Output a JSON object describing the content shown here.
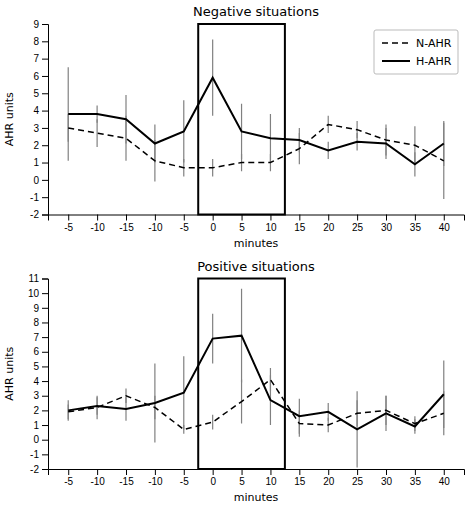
{
  "chart_data": [
    {
      "type": "line",
      "title": "Negative situations",
      "xlabel": "minutes",
      "ylabel": "AHR units",
      "categories": [
        "-5",
        "-10",
        "-15",
        "-10",
        "-5",
        "0",
        "5",
        "10",
        "15",
        "20",
        "25",
        "30",
        "35",
        "40"
      ],
      "series": [
        {
          "name": "N-AHR",
          "color": "#000000",
          "line_style": "dashed",
          "values": [
            3.0,
            2.7,
            2.4,
            1.1,
            0.7,
            0.7,
            1.0,
            1.0,
            1.8,
            3.2,
            2.9,
            2.3,
            2.0,
            1.1
          ],
          "errors": [
            0.8,
            0.8,
            1.3,
            1.2,
            0.5,
            0.5,
            0.5,
            0.5,
            0.9,
            0.5,
            0.5,
            0.9,
            1.1,
            2.2
          ]
        },
        {
          "name": "H-AHR",
          "color": "#000000",
          "line_style": "solid",
          "values": [
            3.8,
            3.8,
            3.5,
            2.1,
            2.8,
            5.9,
            2.8,
            2.4,
            2.3,
            1.7,
            2.2,
            2.1,
            0.9,
            2.1
          ],
          "errors": [
            2.7,
            0.5,
            1.4,
            1.1,
            1.8,
            2.2,
            1.6,
            1.4,
            0.7,
            0.5,
            0.5,
            0.9,
            0.7,
            1.3
          ]
        }
      ],
      "highlight": {
        "from": "0",
        "to": "10"
      },
      "ylim": [
        -2,
        9
      ],
      "yticks": [
        -2,
        -1,
        0,
        1,
        2,
        3,
        4,
        5,
        6,
        7,
        8,
        9
      ],
      "grid": false,
      "legend": "upper right"
    },
    {
      "type": "line",
      "title": "Positive situations",
      "xlabel": "minutes",
      "ylabel": "AHR units",
      "categories": [
        "-5",
        "-10",
        "-15",
        "-10",
        "-5",
        "0",
        "5",
        "10",
        "15",
        "20",
        "25",
        "30",
        "35",
        "40"
      ],
      "series": [
        {
          "color": "#000000",
          "line_style": "dashed",
          "values": [
            1.9,
            2.2,
            3.0,
            2.2,
            0.7,
            1.2,
            2.6,
            4.1,
            1.1,
            1.0,
            1.8,
            2.0,
            1.1,
            1.8
          ],
          "errors": [
            0.5,
            0.8,
            0.5,
            0.8,
            0.3,
            0.5,
            1.5,
            0.8,
            0.9,
            0.5,
            0.9,
            1.0,
            0.5,
            1.5
          ]
        },
        {
          "color": "#000000",
          "line_style": "solid",
          "values": [
            2.0,
            2.3,
            2.1,
            2.5,
            3.2,
            6.9,
            7.1,
            2.7,
            1.6,
            1.9,
            0.7,
            1.8,
            0.9,
            3.1
          ],
          "errors": [
            0.7,
            0.6,
            0.8,
            2.7,
            2.5,
            1.7,
            3.2,
            1.7,
            1.2,
            0.6,
            2.6,
            1.2,
            0.5,
            2.3
          ]
        }
      ],
      "highlight": {
        "from": "0",
        "to": "10"
      },
      "ylim": [
        -2,
        11
      ],
      "yticks": [
        -2,
        -1,
        0,
        1,
        2,
        3,
        4,
        5,
        6,
        7,
        8,
        9,
        10,
        11
      ],
      "grid": false
    }
  ]
}
